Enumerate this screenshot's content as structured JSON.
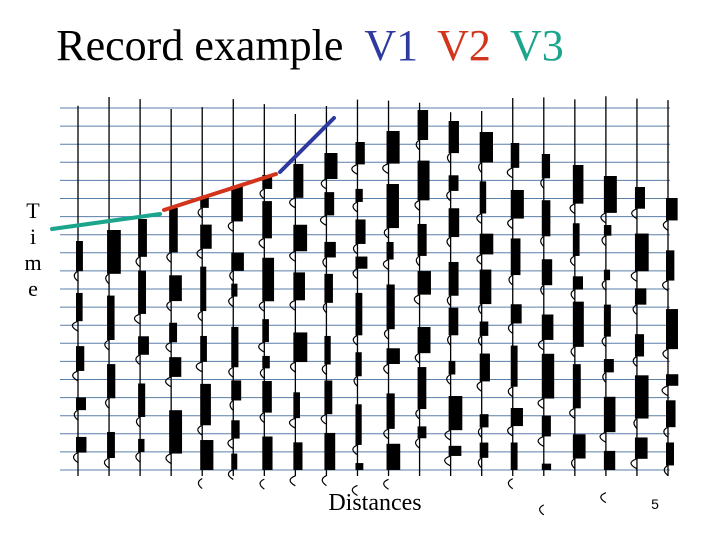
{
  "title": {
    "text": "Record example",
    "v1": "V1",
    "v2": "V2",
    "v3": "V3"
  },
  "colors": {
    "v1": "#2f3a9e",
    "v2": "#d2341c",
    "v3": "#1aa58c",
    "gridline": "#5a7fa8",
    "trace": "#000000"
  },
  "axis": {
    "time_label": [
      "T",
      "i",
      "m",
      "e"
    ],
    "distance_label": "Distances"
  },
  "slide_number": "5",
  "record": {
    "traces": 20,
    "timing_lines": 21
  }
}
